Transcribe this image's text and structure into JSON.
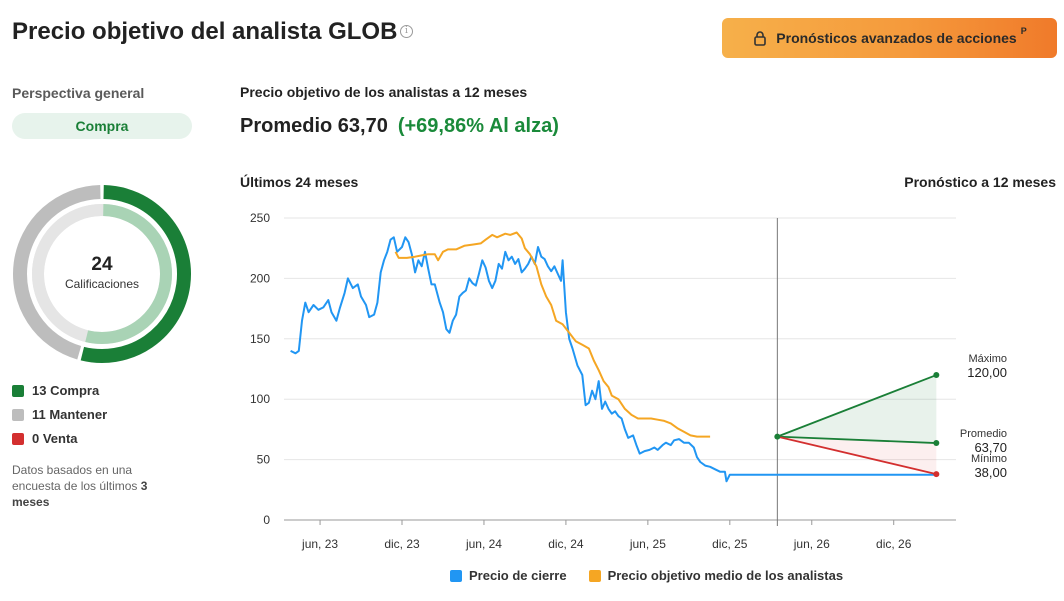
{
  "header": {
    "title": "Precio objetivo del analista GLOB",
    "info_icon": "info-icon",
    "premium_button": "Pronósticos avanzados de acciones",
    "premium_icon": "lock-icon",
    "premium_badge": "P"
  },
  "overview": {
    "label": "Perspectiva general",
    "consensus": "Compra",
    "count": "24",
    "count_caption": "Calificaciones",
    "breakdown": [
      {
        "label": "13 Compra",
        "count": 13,
        "color": "#1a7f37"
      },
      {
        "label": "11 Mantener",
        "count": 11,
        "color": "#bdbdbd"
      },
      {
        "label": "0 Venta",
        "count": 0,
        "color": "#d32f2f"
      }
    ],
    "footnote_prefix": "Datos basados en una encuesta de los últimos",
    "footnote_bold": "3 meses"
  },
  "target": {
    "section_title": "Precio objetivo de los analistas a 12 meses",
    "average_text": "Promedio 63,70",
    "change_text": "(+69,86% Al alza)"
  },
  "chart_labels": {
    "past": "Últimos 24 meses",
    "forecast": "Pronóstico a 12 meses"
  },
  "chart_data": {
    "type": "line",
    "y_ticks": [
      "250",
      "200",
      "150",
      "100",
      "50",
      "0"
    ],
    "ylim": [
      0,
      250
    ],
    "x_ticks": [
      {
        "label": "jun, 23",
        "t": 2023.42
      },
      {
        "label": "dic, 23",
        "t": 2023.92
      },
      {
        "label": "jun, 24",
        "t": 2024.42
      },
      {
        "label": "dic, 24",
        "t": 2024.92
      },
      {
        "label": "jun, 25",
        "t": 2025.42
      },
      {
        "label": "dic, 25",
        "t": 2025.92
      },
      {
        "label": "jun, 26",
        "t": 2026.42
      },
      {
        "label": "dic, 26",
        "t": 2026.92
      }
    ],
    "xlim": [
      2023.2,
      2027.3
    ],
    "today": 2026.21,
    "forecast_end": 2027.18,
    "series": [
      {
        "name": "Precio de cierre",
        "color": "#2196f3",
        "points": [
          [
            2023.24,
            140
          ],
          [
            2023.27,
            138
          ],
          [
            2023.29,
            140
          ],
          [
            2023.31,
            165
          ],
          [
            2023.33,
            180
          ],
          [
            2023.35,
            172
          ],
          [
            2023.38,
            178
          ],
          [
            2023.41,
            174
          ],
          [
            2023.44,
            176
          ],
          [
            2023.47,
            182
          ],
          [
            2023.49,
            172
          ],
          [
            2023.52,
            165
          ],
          [
            2023.54,
            175
          ],
          [
            2023.57,
            188
          ],
          [
            2023.59,
            200
          ],
          [
            2023.62,
            192
          ],
          [
            2023.65,
            195
          ],
          [
            2023.67,
            185
          ],
          [
            2023.7,
            178
          ],
          [
            2023.72,
            168
          ],
          [
            2023.75,
            170
          ],
          [
            2023.77,
            180
          ],
          [
            2023.79,
            205
          ],
          [
            2023.81,
            215
          ],
          [
            2023.83,
            222
          ],
          [
            2023.85,
            232
          ],
          [
            2023.87,
            234
          ],
          [
            2023.89,
            222
          ],
          [
            2023.92,
            226
          ],
          [
            2023.94,
            234
          ],
          [
            2023.96,
            230
          ],
          [
            2023.98,
            220
          ],
          [
            2024.0,
            205
          ],
          [
            2024.02,
            215
          ],
          [
            2024.04,
            210
          ],
          [
            2024.06,
            222
          ],
          [
            2024.08,
            208
          ],
          [
            2024.1,
            195
          ],
          [
            2024.12,
            195
          ],
          [
            2024.15,
            180
          ],
          [
            2024.17,
            172
          ],
          [
            2024.19,
            158
          ],
          [
            2024.21,
            155
          ],
          [
            2024.23,
            165
          ],
          [
            2024.25,
            170
          ],
          [
            2024.27,
            185
          ],
          [
            2024.29,
            188
          ],
          [
            2024.31,
            190
          ],
          [
            2024.33,
            200
          ],
          [
            2024.35,
            196
          ],
          [
            2024.37,
            194
          ],
          [
            2024.39,
            204
          ],
          [
            2024.41,
            215
          ],
          [
            2024.43,
            209
          ],
          [
            2024.45,
            198
          ],
          [
            2024.47,
            192
          ],
          [
            2024.49,
            198
          ],
          [
            2024.51,
            212
          ],
          [
            2024.53,
            208
          ],
          [
            2024.55,
            222
          ],
          [
            2024.57,
            215
          ],
          [
            2024.59,
            218
          ],
          [
            2024.61,
            212
          ],
          [
            2024.63,
            216
          ],
          [
            2024.65,
            205
          ],
          [
            2024.67,
            208
          ],
          [
            2024.69,
            212
          ],
          [
            2024.71,
            218
          ],
          [
            2024.73,
            212
          ],
          [
            2024.75,
            226
          ],
          [
            2024.77,
            218
          ],
          [
            2024.79,
            216
          ],
          [
            2024.81,
            210
          ],
          [
            2024.83,
            206
          ],
          [
            2024.85,
            210
          ],
          [
            2024.87,
            204
          ],
          [
            2024.89,
            198
          ],
          [
            2024.9,
            215
          ],
          [
            2024.92,
            172
          ],
          [
            2024.94,
            150
          ],
          [
            2024.96,
            142
          ],
          [
            2024.99,
            128
          ],
          [
            2025.02,
            120
          ],
          [
            2025.04,
            95
          ],
          [
            2025.06,
            97
          ],
          [
            2025.08,
            107
          ],
          [
            2025.1,
            100
          ],
          [
            2025.12,
            115
          ],
          [
            2025.14,
            92
          ],
          [
            2025.16,
            98
          ],
          [
            2025.18,
            92
          ],
          [
            2025.2,
            88
          ],
          [
            2025.22,
            90
          ],
          [
            2025.24,
            86
          ],
          [
            2025.26,
            84
          ],
          [
            2025.28,
            75
          ],
          [
            2025.3,
            68
          ],
          [
            2025.33,
            70
          ],
          [
            2025.35,
            62
          ],
          [
            2025.37,
            55
          ],
          [
            2025.4,
            57
          ],
          [
            2025.43,
            58
          ],
          [
            2025.46,
            60
          ],
          [
            2025.48,
            58
          ],
          [
            2025.51,
            62
          ],
          [
            2025.53,
            64
          ],
          [
            2025.56,
            62
          ],
          [
            2025.58,
            66
          ],
          [
            2025.61,
            67
          ],
          [
            2025.64,
            64
          ],
          [
            2025.67,
            64
          ],
          [
            2025.7,
            60
          ],
          [
            2025.72,
            52
          ],
          [
            2025.74,
            48
          ],
          [
            2025.77,
            45
          ],
          [
            2025.8,
            44
          ],
          [
            2025.83,
            42
          ],
          [
            2025.86,
            40
          ],
          [
            2025.89,
            40
          ],
          [
            2025.9,
            32
          ],
          [
            2025.92,
            37.5
          ],
          [
            2027.18,
            37.5
          ]
        ]
      },
      {
        "name": "Precio objetivo medio de los analistas",
        "color": "#f5a623",
        "points": [
          [
            2023.88,
            222
          ],
          [
            2023.9,
            217
          ],
          [
            2023.95,
            217
          ],
          [
            2024.0,
            218
          ],
          [
            2024.04,
            219
          ],
          [
            2024.08,
            220
          ],
          [
            2024.12,
            220
          ],
          [
            2024.14,
            215
          ],
          [
            2024.17,
            222
          ],
          [
            2024.2,
            224
          ],
          [
            2024.25,
            224
          ],
          [
            2024.3,
            227
          ],
          [
            2024.35,
            228
          ],
          [
            2024.4,
            229
          ],
          [
            2024.43,
            232
          ],
          [
            2024.47,
            236
          ],
          [
            2024.5,
            234
          ],
          [
            2024.55,
            237
          ],
          [
            2024.58,
            236
          ],
          [
            2024.62,
            238
          ],
          [
            2024.65,
            233
          ],
          [
            2024.67,
            225
          ],
          [
            2024.7,
            220
          ],
          [
            2024.74,
            210
          ],
          [
            2024.77,
            195
          ],
          [
            2024.8,
            185
          ],
          [
            2024.83,
            178
          ],
          [
            2024.86,
            165
          ],
          [
            2024.9,
            162
          ],
          [
            2024.94,
            155
          ],
          [
            2024.98,
            148
          ],
          [
            2025.02,
            145
          ],
          [
            2025.06,
            142
          ],
          [
            2025.09,
            132
          ],
          [
            2025.12,
            124
          ],
          [
            2025.15,
            115
          ],
          [
            2025.18,
            110
          ],
          [
            2025.2,
            103
          ],
          [
            2025.24,
            100
          ],
          [
            2025.28,
            92
          ],
          [
            2025.32,
            87
          ],
          [
            2025.36,
            84
          ],
          [
            2025.4,
            84
          ],
          [
            2025.44,
            84
          ],
          [
            2025.48,
            83
          ],
          [
            2025.52,
            82
          ],
          [
            2025.56,
            80
          ],
          [
            2025.6,
            76
          ],
          [
            2025.64,
            73
          ],
          [
            2025.68,
            70
          ],
          [
            2025.72,
            69
          ],
          [
            2025.75,
            69
          ],
          [
            2025.8,
            69
          ]
        ]
      }
    ],
    "forecast": {
      "start_value": 69,
      "high": {
        "label": "Máximo",
        "value_text": "120,00",
        "value": 120,
        "color": "#1a7f37"
      },
      "average": {
        "label": "Promedio",
        "value_text": "63,70",
        "value": 63.7,
        "color": "#1a7f37"
      },
      "low": {
        "label": "Mínimo",
        "value_text": "38,00",
        "value": 38,
        "color": "#d32f2f"
      }
    }
  }
}
